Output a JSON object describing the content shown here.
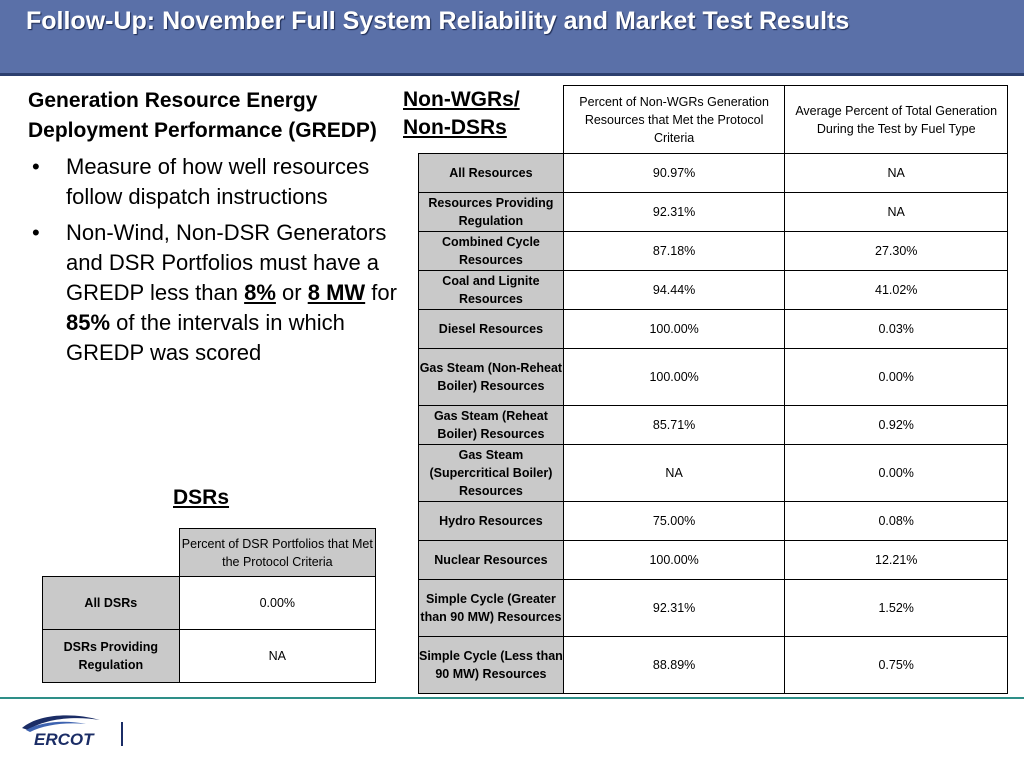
{
  "slide": {
    "title": "Follow-Up: November Full System Reliability and Market Test Results"
  },
  "left": {
    "heading": "Generation Resource Energy Deployment Performance (GREDP)",
    "bullet1": "Measure of how well resources follow dispatch instructions",
    "bullet2_part1": "Non-Wind, Non-DSR Generators and DSR Portfolios must have a GREDP less than ",
    "bullet2_pct": "8%",
    "bullet2_or": " or ",
    "bullet2_mw": "8 MW",
    "bullet2_for": " for ",
    "bullet2_pct85": "85%",
    "bullet2_part2": " of the intervals in which GREDP was scored",
    "bullet_glyph": "•"
  },
  "dsr": {
    "title": "DSRs",
    "header": "Percent of DSR Portfolios that Met the Protocol Criteria",
    "rows": [
      {
        "label": "All DSRs",
        "value": "0.00%"
      },
      {
        "label": "DSRs Providing Regulation",
        "value": "NA"
      }
    ]
  },
  "nonwgr": {
    "label_line1": "Non-WGRs/",
    "label_line2": "Non-DSRs",
    "col1_header": "Percent of Non-WGRs Generation Resources that Met the Protocol Criteria",
    "col2_header": "Average Percent of Total Generation During the Test by Fuel Type",
    "rows": [
      {
        "label": "All Resources",
        "pct": "90.97%",
        "avg": "NA"
      },
      {
        "label": "Resources Providing Regulation",
        "pct": "92.31%",
        "avg": "NA"
      },
      {
        "label": "Combined Cycle Resources",
        "pct": "87.18%",
        "avg": "27.30%"
      },
      {
        "label": "Coal and Lignite Resources",
        "pct": "94.44%",
        "avg": "41.02%"
      },
      {
        "label": "Diesel Resources",
        "pct": "100.00%",
        "avg": "0.03%"
      },
      {
        "label": "Gas Steam (Non-Reheat Boiler) Resources",
        "pct": "100.00%",
        "avg": "0.00%"
      },
      {
        "label": "Gas Steam (Reheat Boiler) Resources",
        "pct": "85.71%",
        "avg": "0.92%"
      },
      {
        "label": "Gas Steam (Supercritical Boiler) Resources",
        "pct": "NA",
        "avg": "0.00%"
      },
      {
        "label": "Hydro Resources",
        "pct": "75.00%",
        "avg": "0.08%"
      },
      {
        "label": "Nuclear Resources",
        "pct": "100.00%",
        "avg": "12.21%"
      },
      {
        "label": "Simple Cycle (Greater than 90 MW) Resources",
        "pct": "92.31%",
        "avg": "1.52%"
      },
      {
        "label": "Simple Cycle (Less than 90 MW) Resources",
        "pct": "88.89%",
        "avg": "0.75%"
      }
    ]
  },
  "footer": {
    "logo_text": "ERCOT",
    "logo_icon": "ercot-swoosh-logo"
  },
  "colors": {
    "title_bar": "#5a70a8",
    "row_label_fill": "#c9c9c9",
    "footer_line": "#2e8f88",
    "logo_navy": "#1b2d66"
  }
}
